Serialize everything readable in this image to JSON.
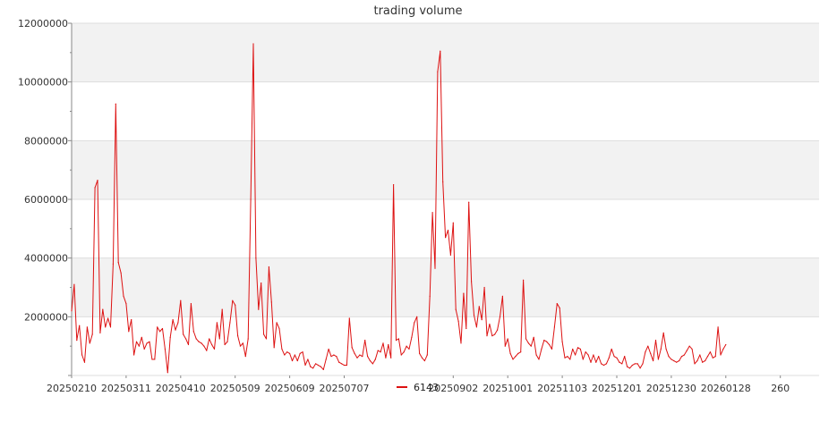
{
  "chart_data": {
    "type": "line",
    "title": "trading volume",
    "xlabel": "",
    "ylabel": "",
    "ylim": [
      0,
      12000000
    ],
    "y_ticks": [
      "0",
      "2000000",
      "4000000",
      "6000000",
      "8000000",
      "10000000",
      "12000000"
    ],
    "y_tick_values": [
      0,
      2000000,
      4000000,
      6000000,
      8000000,
      10000000,
      12000000
    ],
    "x_tick_labels": [
      "20250210",
      "20250311",
      "20250410",
      "20250509",
      "20250609",
      "20250707",
      "20250902",
      "20251001",
      "20251103",
      "20251201",
      "20251230",
      "20260128",
      "260"
    ],
    "x_tick_index": [
      0,
      21,
      42,
      63,
      84,
      105,
      147,
      168,
      189,
      210,
      231,
      252,
      273
    ],
    "grid": true,
    "legend": {
      "position": "bottom-center"
    },
    "colors": {
      "line": "#dd1111",
      "band": "#f2f2f2",
      "grid": "#dddddd",
      "axis": "#888888"
    },
    "series": [
      {
        "name": "6143",
        "values": [
          2200000,
          3100000,
          1200000,
          1700000,
          700000,
          450000,
          1650000,
          1100000,
          1400000,
          6400000,
          6650000,
          1450000,
          2250000,
          1650000,
          1950000,
          1650000,
          3800000,
          9250000,
          3850000,
          3500000,
          2700000,
          2450000,
          1500000,
          1900000,
          700000,
          1150000,
          1000000,
          1300000,
          900000,
          1100000,
          1150000,
          550000,
          550000,
          1650000,
          1500000,
          1600000,
          900000,
          100000,
          1300000,
          1900000,
          1550000,
          1800000,
          2550000,
          1400000,
          1250000,
          1050000,
          2450000,
          1500000,
          1250000,
          1150000,
          1100000,
          1000000,
          850000,
          1250000,
          1050000,
          900000,
          1800000,
          1250000,
          2250000,
          1050000,
          1150000,
          1800000,
          2550000,
          2400000,
          1350000,
          1000000,
          1100000,
          650000,
          1250000,
          6000000,
          11300000,
          4000000,
          2250000,
          3150000,
          1400000,
          1250000,
          3700000,
          2500000,
          950000,
          1800000,
          1600000,
          900000,
          700000,
          800000,
          750000,
          500000,
          700000,
          500000,
          750000,
          800000,
          350000,
          550000,
          300000,
          250000,
          400000,
          350000,
          300000,
          200000,
          550000,
          900000,
          650000,
          700000,
          650000,
          450000,
          400000,
          350000,
          350000,
          1950000,
          950000,
          750000,
          600000,
          700000,
          650000,
          1200000,
          650000,
          500000,
          400000,
          550000,
          850000,
          800000,
          1100000,
          600000,
          1050000,
          600000,
          6500000,
          1200000,
          1250000,
          700000,
          800000,
          1000000,
          900000,
          1300000,
          1800000,
          2000000,
          750000,
          600000,
          500000,
          700000,
          2700000,
          5550000,
          3650000,
          10350000,
          11050000,
          6600000,
          4700000,
          4950000,
          4100000,
          5200000,
          2250000,
          1850000,
          1100000,
          2800000,
          1600000,
          5900000,
          3200000,
          2050000,
          1650000,
          2350000,
          1900000,
          3000000,
          1350000,
          1750000,
          1350000,
          1400000,
          1550000,
          2000000,
          2700000,
          1000000,
          1250000,
          750000,
          550000,
          650000,
          750000,
          800000,
          3250000,
          1250000,
          1100000,
          1000000,
          1300000,
          700000,
          550000,
          900000,
          1200000,
          1150000,
          1050000,
          900000,
          1650000,
          2450000,
          2300000,
          1150000,
          600000,
          650000,
          550000,
          900000,
          700000,
          950000,
          900000,
          550000,
          800000,
          700000,
          450000,
          700000,
          450000,
          650000,
          400000,
          350000,
          400000,
          600000,
          900000,
          650000,
          600000,
          450000,
          400000,
          650000,
          300000,
          250000,
          350000,
          400000,
          400000,
          250000,
          400000,
          800000,
          1000000,
          750000,
          500000,
          1200000,
          550000,
          900000,
          1450000,
          900000,
          650000,
          550000,
          500000,
          450000,
          500000,
          650000,
          700000,
          850000,
          1000000,
          900000,
          400000,
          500000,
          700000,
          450000,
          500000,
          650000,
          800000,
          600000,
          650000,
          1650000,
          700000,
          900000,
          1050000
        ]
      }
    ]
  }
}
